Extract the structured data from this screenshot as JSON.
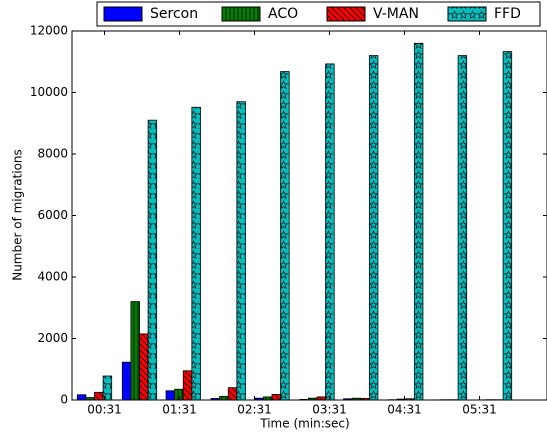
{
  "chart_data": {
    "type": "bar",
    "x_label": "Time (min:sec)",
    "y_label": "Number of migrations",
    "x": [
      23,
      59,
      94,
      130,
      165,
      201,
      236,
      272,
      307,
      343
    ],
    "xlim": [
      5,
      385
    ],
    "xticks": [
      {
        "value": 31,
        "label": "00:31"
      },
      {
        "value": 91,
        "label": "01:31"
      },
      {
        "value": 151,
        "label": "02:31"
      },
      {
        "value": 211,
        "label": "03:31"
      },
      {
        "value": 271,
        "label": "04:31"
      },
      {
        "value": 331,
        "label": "05:31"
      }
    ],
    "ylim": [
      0,
      12000
    ],
    "yticks": [
      0,
      2000,
      4000,
      6000,
      8000,
      10000,
      12000
    ],
    "grid": false,
    "legend": "top",
    "series": [
      {
        "name": "Sercon",
        "color": "#0000ff",
        "hatch": "none",
        "values": [
          170,
          1230,
          300,
          50,
          60,
          20,
          40,
          10,
          5,
          5
        ]
      },
      {
        "name": "ACO",
        "color": "#008000",
        "hatch": "vertical",
        "values": [
          80,
          3200,
          350,
          120,
          100,
          60,
          60,
          30,
          10,
          10
        ]
      },
      {
        "name": "V-MAN",
        "color": "#ff0000",
        "hatch": "diagonal",
        "values": [
          250,
          2150,
          950,
          400,
          180,
          100,
          50,
          40,
          10,
          10
        ]
      },
      {
        "name": "FFD",
        "color": "#00bfbf",
        "hatch": "stars",
        "values": [
          780,
          9100,
          9520,
          9700,
          10680,
          10930,
          11200,
          11600,
          11200,
          11330
        ]
      }
    ]
  }
}
